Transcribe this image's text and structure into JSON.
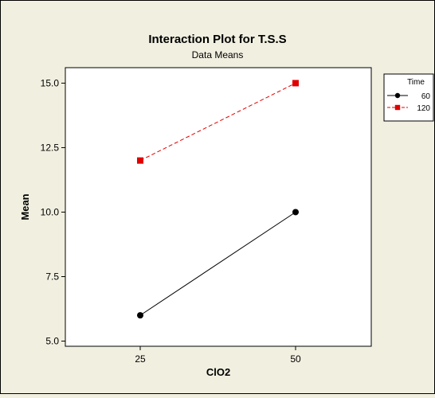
{
  "chart_data": {
    "type": "line",
    "title": "Interaction Plot for T.S.S",
    "subtitle": "Data Means",
    "xlabel": "ClO2",
    "ylabel": "Mean",
    "categories": [
      "25",
      "50"
    ],
    "ylim": [
      4.8,
      15.6
    ],
    "yticks": [
      "5.0",
      "7.5",
      "10.0",
      "12.5",
      "15.0"
    ],
    "grid": false,
    "legend": {
      "title": "Time",
      "placement": "top-right"
    },
    "series": [
      {
        "name": "60",
        "values": [
          6.0,
          10.0
        ],
        "color": "#000000",
        "marker": "circle",
        "line_style": "solid"
      },
      {
        "name": "120",
        "values": [
          12.0,
          15.0
        ],
        "color": "#e00000",
        "marker": "square",
        "line_style": "dashed"
      }
    ]
  },
  "colors": {
    "background": "#f1efe0",
    "plot_area": "#ffffff"
  }
}
